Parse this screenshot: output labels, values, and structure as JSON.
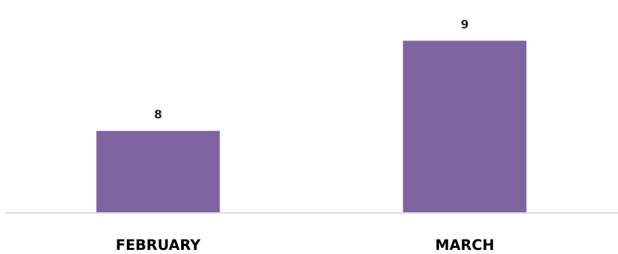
{
  "chart_data": {
    "type": "bar",
    "categories": [
      "FEBRUARY",
      "MARCH"
    ],
    "values": [
      8,
      9
    ],
    "data_labels": [
      "8",
      "9"
    ],
    "title": "",
    "xlabel": "",
    "ylabel": "",
    "ylim": [
      7.09,
      9.11
    ],
    "grid": false,
    "legend": "none",
    "bar_color": "#8064A2",
    "axis_color": "#d9d9d9"
  }
}
